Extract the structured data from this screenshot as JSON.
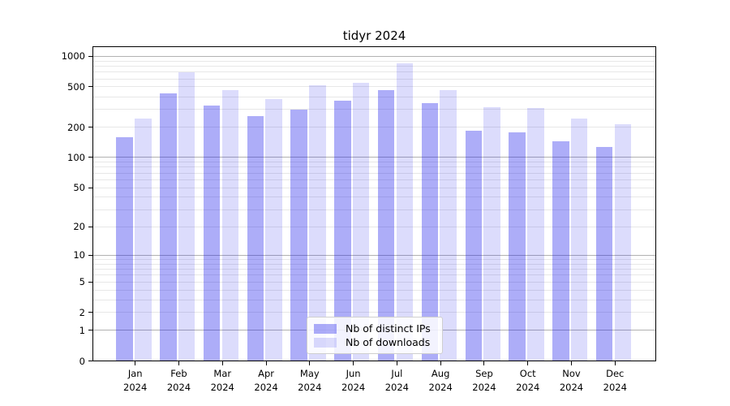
{
  "chart_data": {
    "type": "bar",
    "title": "tidyr 2024",
    "categories": [
      "Jan",
      "Feb",
      "Mar",
      "Apr",
      "May",
      "Jun",
      "Jul",
      "Aug",
      "Sep",
      "Oct",
      "Nov",
      "Dec"
    ],
    "x_tick_second_line": "2024",
    "series": [
      {
        "name": "Nb of distinct IPs",
        "color": "rgba(20,20,235,0.35)",
        "values": [
          160,
          428,
          328,
          257,
          300,
          368,
          466,
          346,
          185,
          178,
          146,
          128
        ]
      },
      {
        "name": "Nb of downloads",
        "color": "rgba(20,20,235,0.15)",
        "values": [
          243,
          700,
          462,
          380,
          523,
          545,
          855,
          462,
          317,
          312,
          242,
          215
        ]
      }
    ],
    "yscale": "log1p",
    "yticks": [
      0,
      1,
      2,
      5,
      10,
      20,
      50,
      100,
      200,
      500,
      1000
    ],
    "ylim": [
      0,
      1250
    ],
    "grid": "horizontal major and minor gridlines, drawn behind translucent bars",
    "legend_position": "inside plot, lower center",
    "major_grid_color": "#b2b2b2",
    "minor_grid_color": "#e7e7e7"
  }
}
